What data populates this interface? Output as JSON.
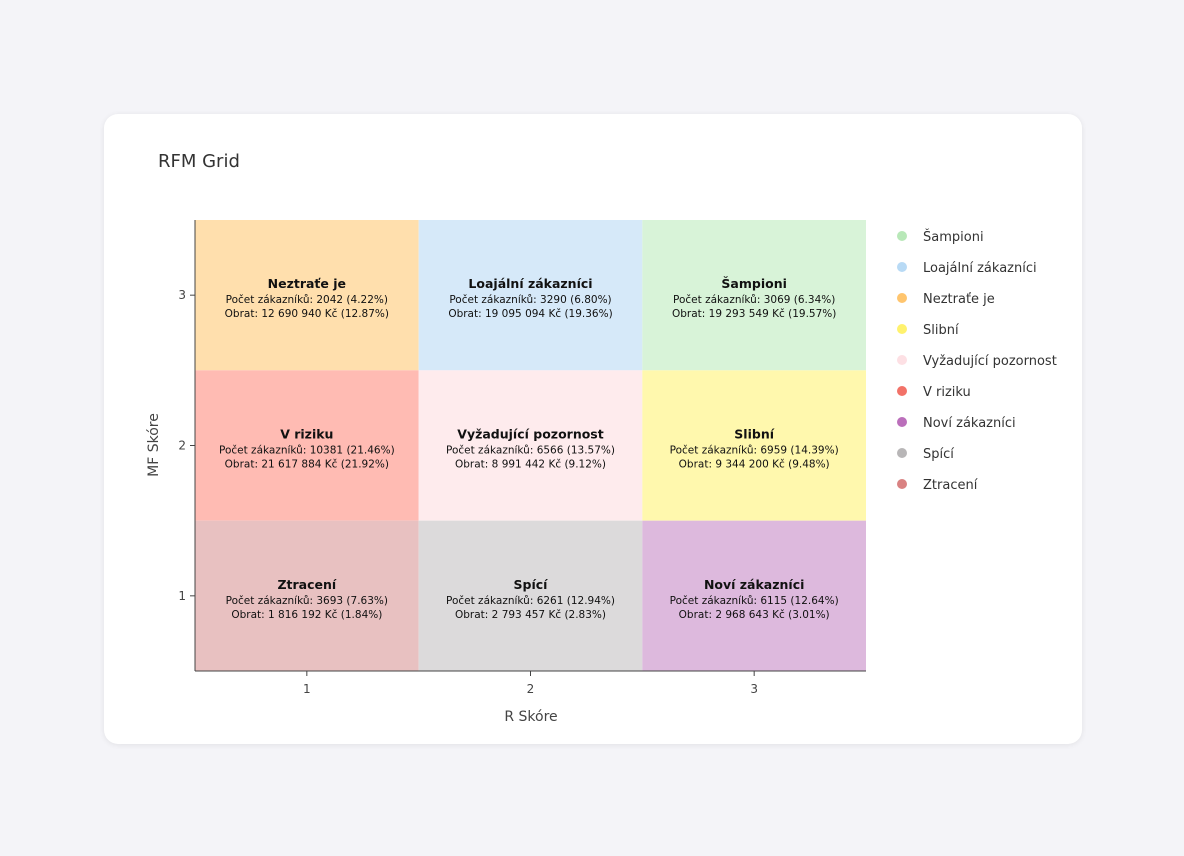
{
  "chart_data": {
    "type": "heatmap",
    "title": "RFM Grid",
    "xlabel": "R Skóre",
    "ylabel": "MF Skóre",
    "x_ticks": [
      "1",
      "2",
      "3"
    ],
    "y_ticks": [
      "1",
      "2",
      "3"
    ],
    "cells": [
      {
        "name": "Neztraťe je",
        "r": 1,
        "mf": 3,
        "count_text": "Počet zákazníků: 2042 (4.22%)",
        "revenue_text": "Obrat: 12 690 940 Kč (12.87%)",
        "customers": 2042,
        "customers_pct": 4.22,
        "revenue": 12690940,
        "revenue_pct": 12.87,
        "color": "#ffdfad"
      },
      {
        "name": "Loajální zákazníci",
        "r": 2,
        "mf": 3,
        "count_text": "Počet zákazníků: 3290 (6.80%)",
        "revenue_text": "Obrat: 19 095 094 Kč (19.36%)",
        "customers": 3290,
        "customers_pct": 6.8,
        "revenue": 19095094,
        "revenue_pct": 19.36,
        "color": "#d6e9f9"
      },
      {
        "name": "Šampioni",
        "r": 3,
        "mf": 3,
        "count_text": "Počet zákazníků: 3069 (6.34%)",
        "revenue_text": "Obrat: 19 293 549 Kč (19.57%)",
        "customers": 3069,
        "customers_pct": 6.34,
        "revenue": 19293549,
        "revenue_pct": 19.57,
        "color": "#d8f3d8"
      },
      {
        "name": "V riziku",
        "r": 1,
        "mf": 2,
        "count_text": "Počet zákazníků: 10381 (21.46%)",
        "revenue_text": "Obrat: 21 617 884 Kč (21.92%)",
        "customers": 10381,
        "customers_pct": 21.46,
        "revenue": 21617884,
        "revenue_pct": 21.92,
        "color": "#ffbbb3"
      },
      {
        "name": "Vyžadující pozornost",
        "r": 2,
        "mf": 2,
        "count_text": "Počet zákazníků: 6566 (13.57%)",
        "revenue_text": "Obrat: 8 991 442 Kč (9.12%)",
        "customers": 6566,
        "customers_pct": 13.57,
        "revenue": 8991442,
        "revenue_pct": 9.12,
        "color": "#feebed"
      },
      {
        "name": "Slibní",
        "r": 3,
        "mf": 2,
        "count_text": "Počet zákazníků: 6959 (14.39%)",
        "revenue_text": "Obrat: 9 344 200 Kč (9.48%)",
        "customers": 6959,
        "customers_pct": 14.39,
        "revenue": 9344200,
        "revenue_pct": 9.48,
        "color": "#fff8ad"
      },
      {
        "name": "Ztracení",
        "r": 1,
        "mf": 1,
        "count_text": "Počet zákazníků: 3693 (7.63%)",
        "revenue_text": "Obrat: 1 816 192 Kč (1.84%)",
        "customers": 3693,
        "customers_pct": 7.63,
        "revenue": 1816192,
        "revenue_pct": 1.84,
        "color": "#e8c1c1"
      },
      {
        "name": "Spící",
        "r": 2,
        "mf": 1,
        "count_text": "Počet zákazníků: 6261 (12.94%)",
        "revenue_text": "Obrat: 2 793 457 Kč (2.83%)",
        "customers": 6261,
        "customers_pct": 12.94,
        "revenue": 2793457,
        "revenue_pct": 2.83,
        "color": "#dcdadb"
      },
      {
        "name": "Noví zákazníci",
        "r": 3,
        "mf": 1,
        "count_text": "Počet zákazníků: 6115 (12.64%)",
        "revenue_text": "Obrat: 2 968 643 Kč (3.01%)",
        "customers": 6115,
        "customers_pct": 12.64,
        "revenue": 2968643,
        "revenue_pct": 3.01,
        "color": "#ddb9dd"
      }
    ],
    "legend": [
      {
        "label": "Šampioni",
        "color": "#b8e8b8"
      },
      {
        "label": "Loajální zákazníci",
        "color": "#b8daf5"
      },
      {
        "label": "Neztraťe je",
        "color": "#ffc56e"
      },
      {
        "label": "Slibní",
        "color": "#fff26e"
      },
      {
        "label": "Vyžadující pozornost",
        "color": "#fde0e4"
      },
      {
        "label": "V riziku",
        "color": "#f27268"
      },
      {
        "label": "Noví zákazníci",
        "color": "#bb6fbb"
      },
      {
        "label": "Spící",
        "color": "#b8b6b7"
      },
      {
        "label": "Ztracení",
        "color": "#d98282"
      }
    ],
    "legend_position": "right",
    "grid": false
  }
}
